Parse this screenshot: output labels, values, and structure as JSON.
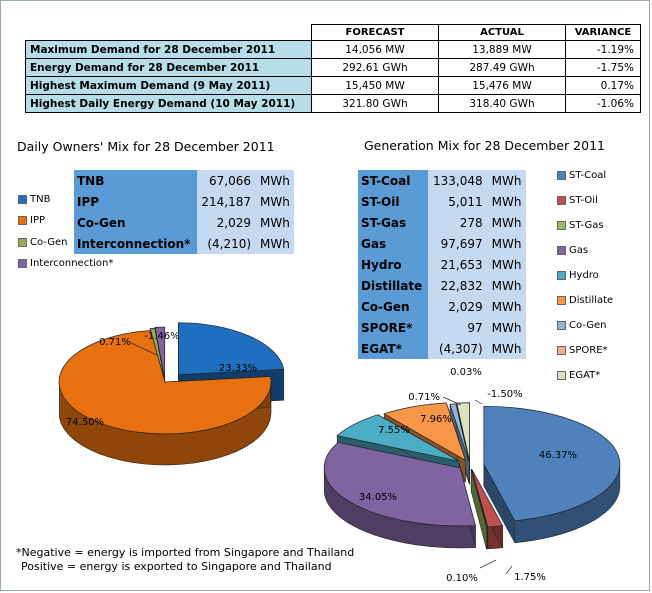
{
  "summary_table": {
    "headers": [
      "FORECAST",
      "ACTUAL",
      "VARIANCE"
    ],
    "rows": [
      {
        "label": "Maximum Demand for 28 December 2011",
        "forecast": "14,056  MW",
        "actual": "13,889  MW",
        "variance": "-1.19%"
      },
      {
        "label": "Energy Demand for 28 December 2011",
        "forecast": "292.61  GWh",
        "actual": "287.49  GWh",
        "variance": "-1.75%"
      },
      {
        "label": "Highest Maximum Demand (9 May 2011)",
        "forecast": "15,450  MW",
        "actual": "15,476  MW",
        "variance": "0.17%"
      },
      {
        "label": "Highest Daily Energy Demand (10 May 2011)",
        "forecast": "321.80  GWh",
        "actual": "318.40  GWh",
        "variance": "-1.06%"
      }
    ]
  },
  "owners": {
    "title": "Daily Owners' Mix for 28 December 2011",
    "table": [
      {
        "name": "TNB",
        "value": "67,066",
        "unit": "MWh"
      },
      {
        "name": "IPP",
        "value": "214,187",
        "unit": "MWh"
      },
      {
        "name": "Co-Gen",
        "value": "2,029",
        "unit": "MWh"
      },
      {
        "name": "Interconnection*",
        "value": "(4,210)",
        "unit": "MWh"
      }
    ],
    "legend": [
      {
        "label": "TNB",
        "color": "#1f6fc1"
      },
      {
        "label": "IPP",
        "color": "#e8700f"
      },
      {
        "label": "Co-Gen",
        "color": "#9aa957"
      },
      {
        "label": "Interconnection*",
        "color": "#8064a2"
      }
    ]
  },
  "generation": {
    "title": "Generation Mix for 28 December 2011",
    "table": [
      {
        "name": "ST-Coal",
        "value": "133,048",
        "unit": "MWh"
      },
      {
        "name": "ST-Oil",
        "value": "5,011",
        "unit": "MWh"
      },
      {
        "name": "ST-Gas",
        "value": "278",
        "unit": "MWh"
      },
      {
        "name": "Gas",
        "value": "97,697",
        "unit": "MWh"
      },
      {
        "name": "Hydro",
        "value": "21,653",
        "unit": "MWh"
      },
      {
        "name": "Distillate",
        "value": "22,832",
        "unit": "MWh"
      },
      {
        "name": "Co-Gen",
        "value": "2,029",
        "unit": "MWh"
      },
      {
        "name": "SPORE*",
        "value": "97",
        "unit": "MWh"
      },
      {
        "name": "EGAT*",
        "value": "(4,307)",
        "unit": "MWh"
      }
    ],
    "legend": [
      {
        "label": "ST-Coal",
        "color": "#4f81bd"
      },
      {
        "label": "ST-Oil",
        "color": "#c0504d"
      },
      {
        "label": "ST-Gas",
        "color": "#9bbb59"
      },
      {
        "label": "Gas",
        "color": "#8064a2"
      },
      {
        "label": "Hydro",
        "color": "#4bacc6"
      },
      {
        "label": "Distillate",
        "color": "#f79646"
      },
      {
        "label": "Co-Gen",
        "color": "#95b3d7"
      },
      {
        "label": "SPORE*",
        "color": "#f2b08a"
      },
      {
        "label": "EGAT*",
        "color": "#d7e4bd"
      }
    ]
  },
  "chart_data": [
    {
      "type": "pie",
      "title": "Daily Owners' Mix for 28 December 2011",
      "categories": [
        "TNB",
        "IPP",
        "Co-Gen",
        "Interconnection*"
      ],
      "values": [
        23.33,
        74.5,
        0.71,
        -1.46
      ],
      "labels": [
        "23.33%",
        "74.50%",
        "0.71%",
        "-1.46%"
      ]
    },
    {
      "type": "pie",
      "title": "Generation Mix for 28 December 2011",
      "categories": [
        "ST-Coal",
        "ST-Oil",
        "ST-Gas",
        "Gas",
        "Hydro",
        "Distillate",
        "Co-Gen",
        "SPORE*",
        "EGAT*"
      ],
      "values": [
        46.37,
        1.75,
        0.1,
        34.05,
        7.55,
        7.96,
        0.71,
        0.03,
        -1.5
      ],
      "labels": [
        "46.37%",
        "1.75%",
        "0.10%",
        "34.05%",
        "7.55%",
        "7.96%",
        "0.71%",
        "0.03%",
        "-1.50%"
      ]
    }
  ],
  "notes": [
    "*Negative = energy is imported from Singapore and Thailand",
    "Positive = energy is exported to Singapore and Thailand"
  ]
}
